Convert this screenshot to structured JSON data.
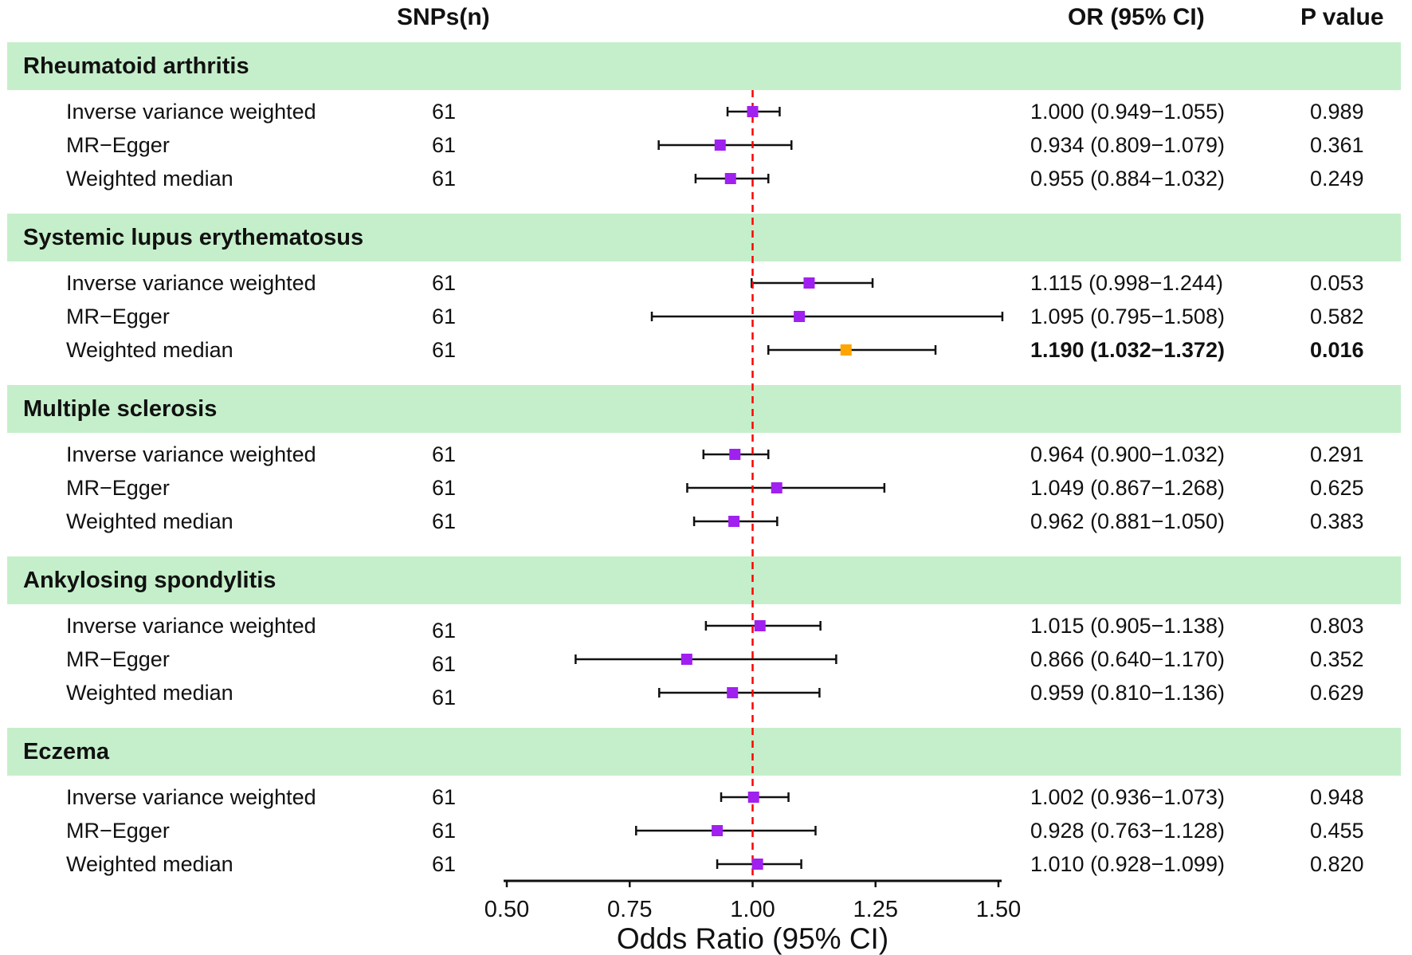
{
  "headers": {
    "snps": "SNPs(n)",
    "or": "OR (95% CI)",
    "p": "P value"
  },
  "colors": {
    "band": "#c5efca",
    "marker_default": "#a020f0",
    "marker_significant": "#ffa500",
    "reference_line": "#ff0000"
  },
  "chart_data": {
    "type": "forest",
    "xlabel": "Odds Ratio (95% CI)",
    "xlim": [
      0.5,
      1.5
    ],
    "xticks": [
      0.5,
      0.75,
      1.0,
      1.25,
      1.5
    ],
    "xtick_labels": [
      "0.50",
      "0.75",
      "1.00",
      "1.25",
      "1.50"
    ],
    "reference_line": 1.0,
    "groups": [
      {
        "name": "Rheumatoid arthritis",
        "rows": [
          {
            "method": "Inverse variance weighted",
            "snps": "61",
            "or": 1.0,
            "lo": 0.949,
            "hi": 1.055,
            "or_text": "1.000 (0.949−1.055)",
            "p": "0.989",
            "significant": false
          },
          {
            "method": "MR−Egger",
            "snps": "61",
            "or": 0.934,
            "lo": 0.809,
            "hi": 1.079,
            "or_text": "0.934 (0.809−1.079)",
            "p": "0.361",
            "significant": false
          },
          {
            "method": "Weighted median",
            "snps": "61",
            "or": 0.955,
            "lo": 0.884,
            "hi": 1.032,
            "or_text": "0.955 (0.884−1.032)",
            "p": "0.249",
            "significant": false
          }
        ]
      },
      {
        "name": "Systemic lupus erythematosus",
        "rows": [
          {
            "method": "Inverse variance weighted",
            "snps": "61",
            "or": 1.115,
            "lo": 0.998,
            "hi": 1.244,
            "or_text": "1.115 (0.998−1.244)",
            "p": "0.053",
            "significant": false
          },
          {
            "method": "MR−Egger",
            "snps": "61",
            "or": 1.095,
            "lo": 0.795,
            "hi": 1.508,
            "or_text": "1.095 (0.795−1.508)",
            "p": "0.582",
            "significant": false
          },
          {
            "method": "Weighted median",
            "snps": "61",
            "or": 1.19,
            "lo": 1.032,
            "hi": 1.372,
            "or_text": "1.190 (1.032−1.372)",
            "p": "0.016",
            "significant": true
          }
        ]
      },
      {
        "name": "Multiple sclerosis",
        "rows": [
          {
            "method": "Inverse variance weighted",
            "snps": "61",
            "or": 0.964,
            "lo": 0.9,
            "hi": 1.032,
            "or_text": "0.964 (0.900−1.032)",
            "p": "0.291",
            "significant": false
          },
          {
            "method": "MR−Egger",
            "snps": "61",
            "or": 1.049,
            "lo": 0.867,
            "hi": 1.268,
            "or_text": "1.049 (0.867−1.268)",
            "p": "0.625",
            "significant": false
          },
          {
            "method": "Weighted median",
            "snps": "61",
            "or": 0.962,
            "lo": 0.881,
            "hi": 1.05,
            "or_text": "0.962 (0.881−1.050)",
            "p": "0.383",
            "significant": false
          }
        ]
      },
      {
        "name": "Ankylosing spondylitis",
        "rows": [
          {
            "method": "Inverse variance weighted",
            "snps": "61",
            "or": 1.015,
            "lo": 0.905,
            "hi": 1.138,
            "or_text": "1.015 (0.905−1.138)",
            "p": "0.803",
            "significant": false
          },
          {
            "method": "MR−Egger",
            "snps": "61",
            "or": 0.866,
            "lo": 0.64,
            "hi": 1.17,
            "or_text": "0.866 (0.640−1.170)",
            "p": "0.352",
            "significant": false
          },
          {
            "method": "Weighted median",
            "snps": "61",
            "or": 0.959,
            "lo": 0.81,
            "hi": 1.136,
            "or_text": "0.959 (0.810−1.136)",
            "p": "0.629",
            "significant": false
          }
        ]
      },
      {
        "name": "Eczema",
        "rows": [
          {
            "method": "Inverse variance weighted",
            "snps": "61",
            "or": 1.002,
            "lo": 0.936,
            "hi": 1.073,
            "or_text": "1.002 (0.936−1.073)",
            "p": "0.948",
            "significant": false
          },
          {
            "method": "MR−Egger",
            "snps": "61",
            "or": 0.928,
            "lo": 0.763,
            "hi": 1.128,
            "or_text": "0.928 (0.763−1.128)",
            "p": "0.455",
            "significant": false
          },
          {
            "method": "Weighted median",
            "snps": "61",
            "or": 1.01,
            "lo": 0.928,
            "hi": 1.099,
            "or_text": "1.010 (0.928−1.099)",
            "p": "0.820",
            "significant": false
          }
        ]
      }
    ]
  }
}
